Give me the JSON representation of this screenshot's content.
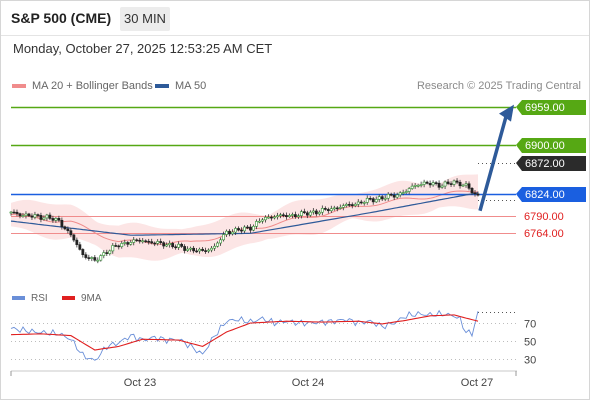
{
  "header": {
    "title": "S&P 500 (CME)",
    "timeframe": "30 MIN",
    "datetime": "Monday, October 27, 2025 12:53:25 AM CET"
  },
  "legend": {
    "bollinger": {
      "label": "MA 20 + Bollinger Bands",
      "color": "#f08c8c"
    },
    "ma50": {
      "label": "MA 50",
      "color": "#2e5a99"
    },
    "credit": "Research © 2025 Trading Central"
  },
  "rsi_legend": {
    "rsi": {
      "label": "RSI",
      "color": "#6a8fd8"
    },
    "ma9": {
      "label": "9MA",
      "color": "#e02020"
    }
  },
  "levels": [
    {
      "value": 6959.0,
      "label": "6959.00",
      "style": "box",
      "bg": "#56a814",
      "line": "#56a814"
    },
    {
      "value": 6900.0,
      "label": "6900.00",
      "style": "box",
      "bg": "#56a814",
      "line": "#56a814"
    },
    {
      "value": 6872.0,
      "label": "6872.00",
      "style": "box-dotted",
      "bg": "#2b2b2b",
      "line": "#555555"
    },
    {
      "value": 6824.0,
      "label": "6824.00",
      "style": "box",
      "bg": "#1a5fe0",
      "line": "#1a5fe0"
    },
    {
      "value": 6790.0,
      "label": "6790.00",
      "style": "text",
      "text_color": "#e02020",
      "line": "#f08c8c"
    },
    {
      "value": 6764.0,
      "label": "6764.00",
      "style": "text",
      "text_color": "#e02020",
      "line": "#f08c8c"
    }
  ],
  "chart_data": [
    {
      "type": "candlestick",
      "title": "S&P 500 (CME)",
      "timeframe": "30 MIN",
      "x_labels": [
        "Oct 23",
        "Oct 24",
        "Oct 27"
      ],
      "ylim": [
        6700,
        6980
      ],
      "last_price": 6814,
      "support_resistance": [
        6959.0,
        6900.0,
        6872.0,
        6824.0,
        6790.0,
        6764.0
      ],
      "forecast_arrow": {
        "from": 6798,
        "to": 6958
      },
      "ohlc_anchors": [
        [
          0,
          6795
        ],
        [
          6,
          6790
        ],
        [
          12,
          6788
        ],
        [
          16,
          6782
        ],
        [
          20,
          6760
        ],
        [
          24,
          6730
        ],
        [
          28,
          6720
        ],
        [
          32,
          6735
        ],
        [
          36,
          6745
        ],
        [
          40,
          6750
        ],
        [
          44,
          6752
        ],
        [
          48,
          6748
        ],
        [
          52,
          6746
        ],
        [
          56,
          6742
        ],
        [
          60,
          6738
        ],
        [
          64,
          6735
        ],
        [
          68,
          6742
        ],
        [
          72,
          6765
        ],
        [
          76,
          6768
        ],
        [
          80,
          6772
        ],
        [
          84,
          6785
        ],
        [
          88,
          6790
        ],
        [
          92,
          6790
        ],
        [
          96,
          6792
        ],
        [
          100,
          6795
        ],
        [
          104,
          6798
        ],
        [
          108,
          6802
        ],
        [
          112,
          6806
        ],
        [
          116,
          6810
        ],
        [
          120,
          6815
        ],
        [
          124,
          6818
        ],
        [
          128,
          6822
        ],
        [
          132,
          6828
        ],
        [
          134,
          6835
        ],
        [
          136,
          6840
        ],
        [
          140,
          6840
        ],
        [
          144,
          6838
        ],
        [
          148,
          6842
        ],
        [
          152,
          6838
        ],
        [
          154,
          6826
        ],
        [
          156,
          6822
        ]
      ],
      "ma50_anchors": [
        [
          0,
          6782
        ],
        [
          40,
          6760
        ],
        [
          80,
          6763
        ],
        [
          120,
          6795
        ],
        [
          156,
          6826
        ]
      ],
      "bollinger_mid_anchors": [
        [
          0,
          6792
        ],
        [
          20,
          6780
        ],
        [
          36,
          6750
        ],
        [
          60,
          6748
        ],
        [
          80,
          6770
        ],
        [
          120,
          6808
        ],
        [
          156,
          6830
        ]
      ],
      "bollinger_width": 26
    },
    {
      "type": "line",
      "title": "RSI",
      "ylim": [
        0,
        100
      ],
      "y_ticks": [
        70,
        50,
        30
      ],
      "series": [
        {
          "name": "RSI",
          "color": "#6a8fd8",
          "anchors": [
            [
              0,
              64
            ],
            [
              8,
              60
            ],
            [
              16,
              58
            ],
            [
              20,
              52
            ],
            [
              24,
              34
            ],
            [
              28,
              28
            ],
            [
              32,
              44
            ],
            [
              36,
              48
            ],
            [
              40,
              56
            ],
            [
              44,
              51
            ],
            [
              48,
              54
            ],
            [
              52,
              51
            ],
            [
              56,
              52
            ],
            [
              60,
              44
            ],
            [
              64,
              35
            ],
            [
              68,
              56
            ],
            [
              72,
              72
            ],
            [
              76,
              74
            ],
            [
              80,
              71
            ],
            [
              84,
              75
            ],
            [
              88,
              70
            ],
            [
              92,
              72
            ],
            [
              96,
              70
            ],
            [
              100,
              70
            ],
            [
              104,
              71
            ],
            [
              108,
              72
            ],
            [
              112,
              74
            ],
            [
              116,
              70
            ],
            [
              120,
              72
            ],
            [
              124,
              66
            ],
            [
              128,
              70
            ],
            [
              132,
              78
            ],
            [
              136,
              80
            ],
            [
              140,
              79
            ],
            [
              144,
              80
            ],
            [
              148,
              78
            ],
            [
              150,
              74
            ],
            [
              152,
              60
            ],
            [
              154,
              58
            ],
            [
              156,
              82
            ]
          ]
        },
        {
          "name": "9MA",
          "color": "#e02020",
          "anchors": [
            [
              0,
              57
            ],
            [
              10,
              58
            ],
            [
              20,
              56
            ],
            [
              28,
              40
            ],
            [
              36,
              44
            ],
            [
              44,
              52
            ],
            [
              56,
              51
            ],
            [
              64,
              44
            ],
            [
              72,
              60
            ],
            [
              80,
              70
            ],
            [
              92,
              72
            ],
            [
              104,
              71
            ],
            [
              116,
              72
            ],
            [
              124,
              69
            ],
            [
              132,
              73
            ],
            [
              140,
              78
            ],
            [
              148,
              79
            ],
            [
              156,
              72
            ]
          ]
        }
      ]
    }
  ]
}
